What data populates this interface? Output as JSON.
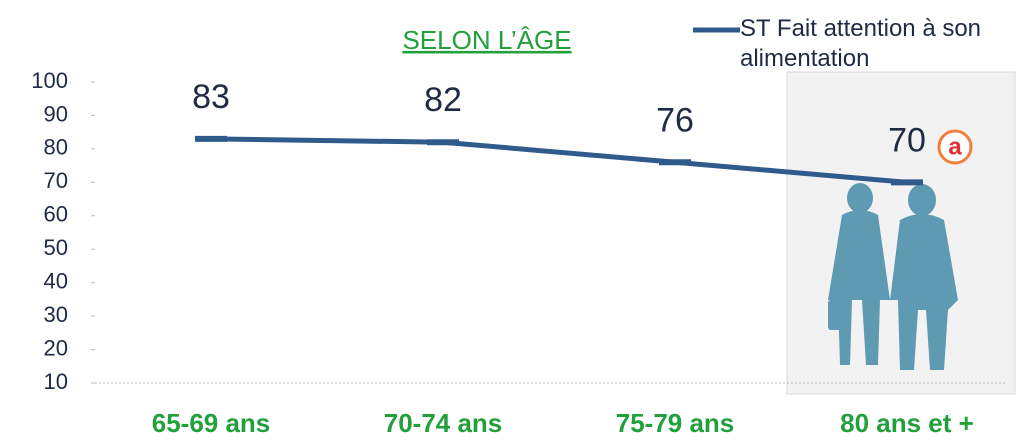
{
  "chart_data": {
    "type": "line",
    "title": "SELON L’ÂGE",
    "categories": [
      "65-69 ans",
      "70-74 ans",
      "75-79 ans",
      "80 ans et +"
    ],
    "series": [
      {
        "name": "ST Fait attention à son alimentation",
        "color": "#2e5a8c",
        "values": [
          83,
          82,
          76,
          70
        ]
      }
    ],
    "ylim": [
      10,
      100
    ],
    "yticks": [
      10,
      20,
      30,
      40,
      50,
      60,
      70,
      80,
      90,
      100
    ],
    "annotation": "a"
  }
}
